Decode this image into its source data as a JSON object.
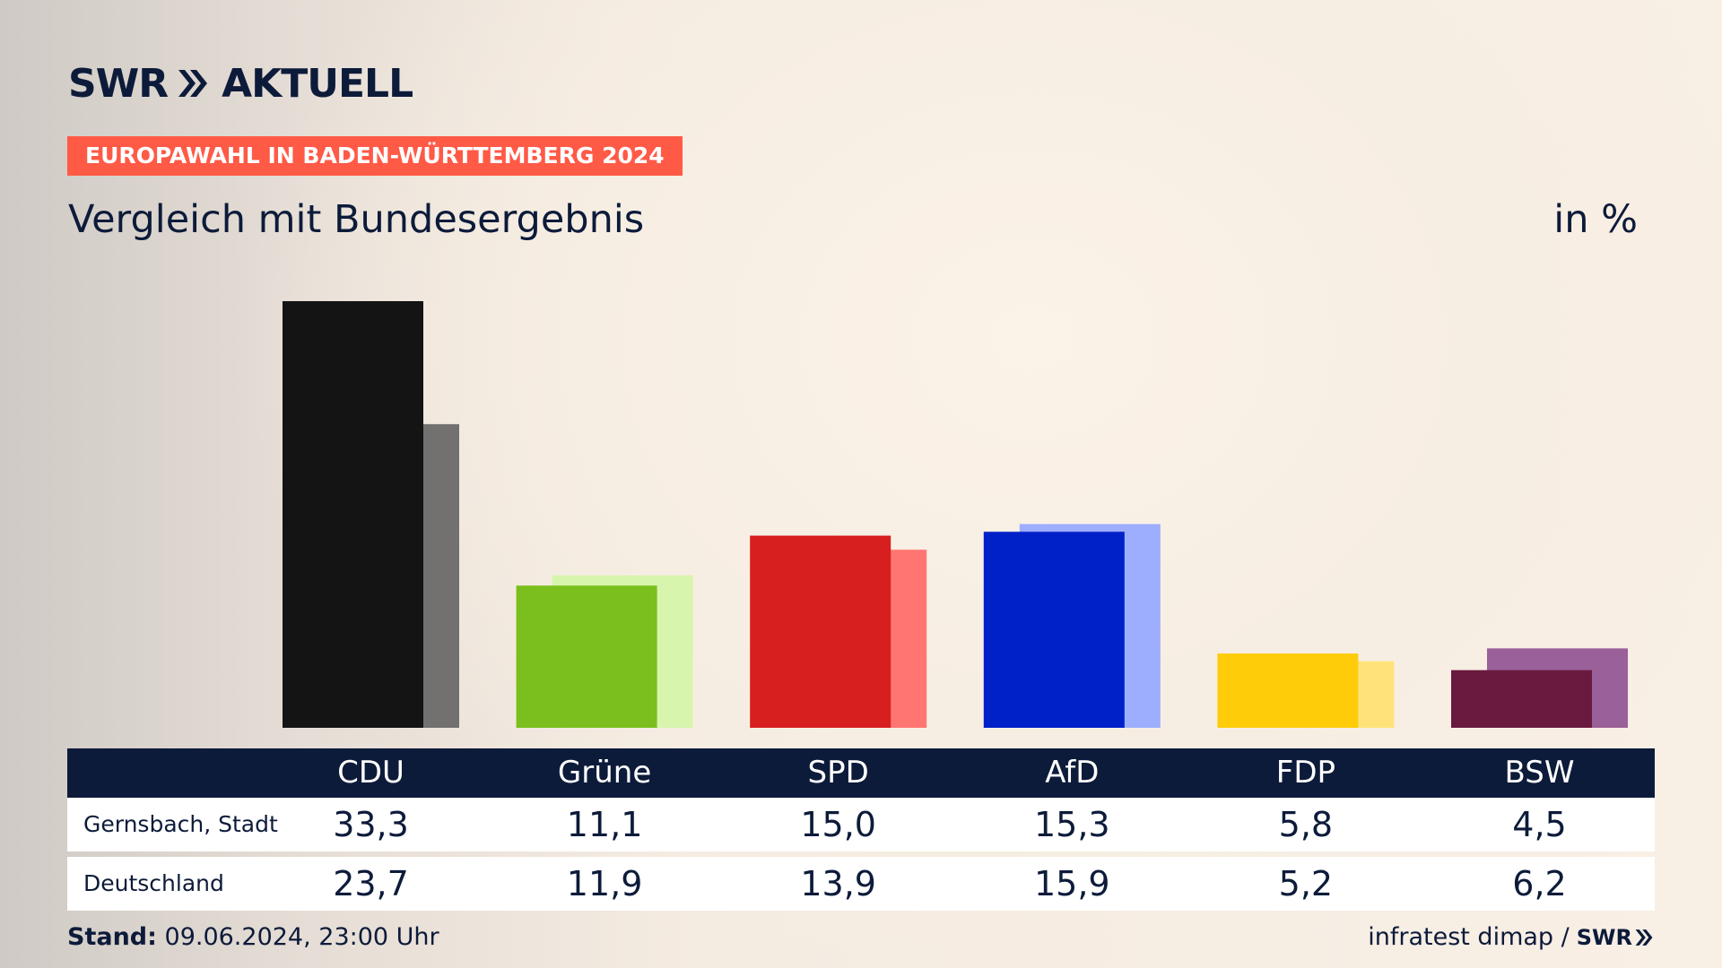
{
  "logo": {
    "part1": "SWR",
    "part2": "AKTUELL"
  },
  "badge": "EUROPAWAHL IN BADEN-WÜRTTEMBERG 2024",
  "subtitle": "Vergleich mit Bundesergebnis",
  "unit": "in %",
  "footer": {
    "stand_label": "Stand:",
    "stand_value": "09.06.2024, 23:00 Uhr",
    "source": "infratest dimap /",
    "source_brand": "SWR"
  },
  "chart_data": {
    "type": "bar",
    "categories": [
      "CDU",
      "Grüne",
      "SPD",
      "AfD",
      "FDP",
      "BSW"
    ],
    "series": [
      {
        "name": "Gernsbach, Stadt",
        "values": [
          33.3,
          11.1,
          15.0,
          15.3,
          5.8,
          4.5
        ]
      },
      {
        "name": "Deutschland",
        "values": [
          23.7,
          11.9,
          13.9,
          15.9,
          5.2,
          6.2
        ]
      }
    ],
    "value_labels": [
      [
        "33,3",
        "11,1",
        "15,0",
        "15,3",
        "5,8",
        "4,5"
      ],
      [
        "23,7",
        "11,9",
        "13,9",
        "15,9",
        "5,2",
        "6,2"
      ]
    ],
    "colors_primary": [
      "#141414",
      "#7abf1d",
      "#d71f1f",
      "#0020c8",
      "#ffcc0a",
      "#6a1a3e"
    ],
    "colors_secondary": [
      "#727170",
      "#d8f5ad",
      "#ff7572",
      "#9daefe",
      "#ffe37a",
      "#9a6099"
    ],
    "ylim": [
      0,
      35
    ],
    "grid": false,
    "legend": "table-below"
  }
}
